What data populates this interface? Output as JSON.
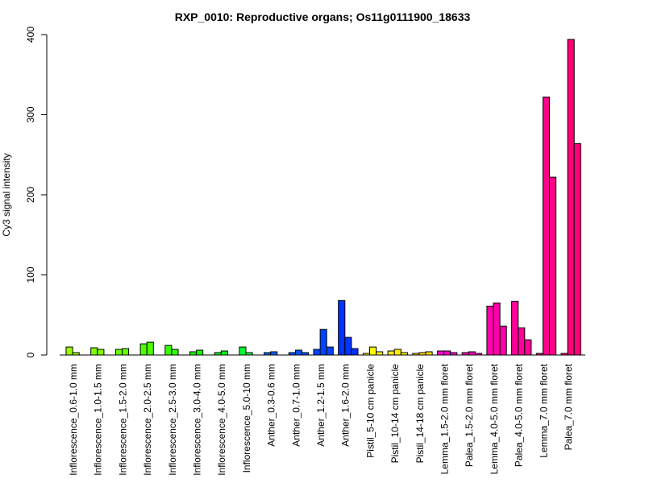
{
  "chart_data": {
    "type": "bar",
    "title": "RXP_0010: Reproductive organs; Os11g0111900_18633",
    "ylabel": "Cy3 signal intensity",
    "xlabel": "",
    "ylim": [
      0,
      400
    ],
    "yticks": [
      0,
      100,
      200,
      300,
      400
    ],
    "grid": false,
    "legend": "none",
    "groups": [
      {
        "label": "Inflorescence_0.6-1.0 mm",
        "values": [
          10,
          3
        ],
        "colors": [
          "#99ff00",
          "#99ff00"
        ]
      },
      {
        "label": "Inflorescence_1.0-1.5 mm",
        "values": [
          9,
          7
        ],
        "colors": [
          "#80ff00",
          "#80ff00"
        ]
      },
      {
        "label": "Inflorescence_1.5-2.0 mm",
        "values": [
          7,
          8
        ],
        "colors": [
          "#66ff00",
          "#66ff00"
        ]
      },
      {
        "label": "Inflorescence_2.0-2.5 mm",
        "values": [
          14,
          16
        ],
        "colors": [
          "#4dff00",
          "#4dff00"
        ]
      },
      {
        "label": "Inflorescence_2.5-3.0 mm",
        "values": [
          12,
          7
        ],
        "colors": [
          "#33ff00",
          "#33ff00"
        ]
      },
      {
        "label": "Inflorescence_3.0-4.0 mm",
        "values": [
          4,
          6
        ],
        "colors": [
          "#1aff00",
          "#1aff00"
        ]
      },
      {
        "label": "Inflorescence_4.0-5.0 mm",
        "values": [
          3,
          5
        ],
        "colors": [
          "#00ff1a",
          "#00ff1a"
        ]
      },
      {
        "label": "Inflorescence_5.0-10 mm",
        "values": [
          10,
          3
        ],
        "colors": [
          "#00ff33",
          "#00ff33"
        ]
      },
      {
        "label": "Anther_0.3-0.6 mm",
        "values": [
          3,
          4
        ],
        "colors": [
          "#0066ff",
          "#0066ff"
        ]
      },
      {
        "label": "Anther_0.7-1.0 mm",
        "values": [
          3,
          6,
          3
        ],
        "colors": [
          "#0055ff",
          "#0055ff",
          "#0055ff"
        ]
      },
      {
        "label": "Anther_1.2-1.5 mm",
        "values": [
          7,
          32,
          10
        ],
        "colors": [
          "#0044ff",
          "#0044ff",
          "#0044ff"
        ]
      },
      {
        "label": "Anther_1.6-2.0 mm",
        "values": [
          68,
          22,
          8
        ],
        "colors": [
          "#0033ff",
          "#0033ff",
          "#0033ff"
        ]
      },
      {
        "label": "Pistil_5-10 cm panicle",
        "values": [
          2,
          10,
          4
        ],
        "colors": [
          "#ffff00",
          "#ffff00",
          "#ffff00"
        ]
      },
      {
        "label": "Pistil_10-14 cm panicle",
        "values": [
          5,
          7,
          3
        ],
        "colors": [
          "#ffee00",
          "#ffee00",
          "#ffee00"
        ]
      },
      {
        "label": "Pistil_14-18 cm panicle",
        "values": [
          2,
          3,
          4
        ],
        "colors": [
          "#ffdd00",
          "#ffdd00",
          "#ffdd00"
        ]
      },
      {
        "label": "Lemma_1.5-2.0 mm floret",
        "values": [
          5,
          5,
          3
        ],
        "colors": [
          "#ff00cc",
          "#ff00cc",
          "#ff00cc"
        ]
      },
      {
        "label": "Palea_1.5-2.0 mm floret",
        "values": [
          3,
          4,
          2
        ],
        "colors": [
          "#ff00bb",
          "#ff00bb",
          "#ff00bb"
        ]
      },
      {
        "label": "Lemma_4.0-5.0 mm floret",
        "values": [
          61,
          65,
          36
        ],
        "colors": [
          "#ff00aa",
          "#ff00aa",
          "#ff00aa"
        ]
      },
      {
        "label": "Palea_4.0-5.0 mm floret",
        "values": [
          67,
          34,
          19
        ],
        "colors": [
          "#ff0099",
          "#ff0099",
          "#ff0099"
        ]
      },
      {
        "label": "Lemma_7.0 mm floret",
        "values": [
          2,
          322,
          222
        ],
        "colors": [
          "#ff0088",
          "#ff0088",
          "#ff0088"
        ]
      },
      {
        "label": "Palea_7.0 mm floret",
        "values": [
          2,
          394,
          264
        ],
        "colors": [
          "#ff0077",
          "#ff0077",
          "#ff0077"
        ]
      }
    ]
  }
}
